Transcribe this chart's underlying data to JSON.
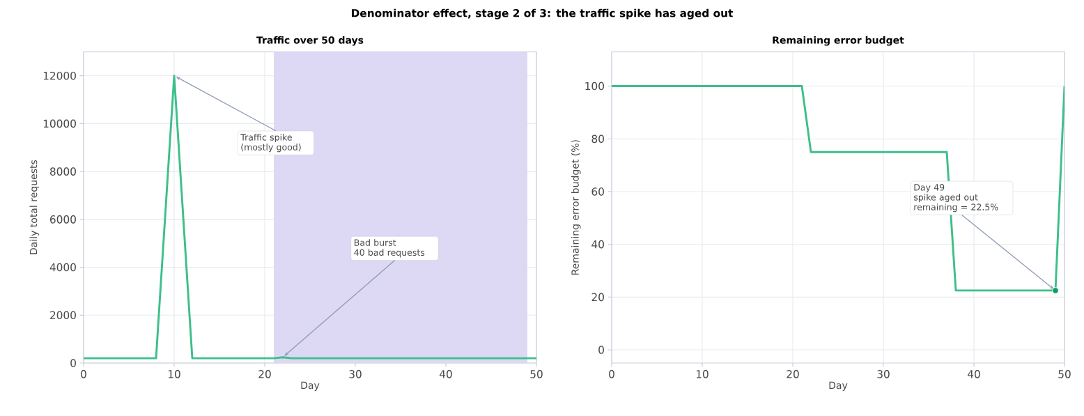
{
  "chart_data": [
    {
      "type": "line",
      "title": "Traffic over 50 days",
      "xlabel": "Day",
      "ylabel": "Daily total requests",
      "annotations": [
        "Denominator effect, stage 2 of 3: the traffic spike has aged out",
        {
          "text": "Traffic spike\n(mostly good)",
          "x": 10,
          "y": 12000
        },
        {
          "text": "Bad burst\n40 bad requests",
          "x": 22,
          "y": 240
        }
      ],
      "xlim": [
        0,
        50
      ],
      "ylim": [
        0,
        13000
      ],
      "xticks": [
        0,
        10,
        20,
        30,
        40,
        50
      ],
      "yticks": [
        0,
        2000,
        4000,
        6000,
        8000,
        10000,
        12000
      ],
      "grid": true,
      "bands": [
        {
          "axis": "x",
          "from": 21,
          "to": 49,
          "color": "#ddd8f3"
        }
      ],
      "series": [
        {
          "color": "#3dbf8a",
          "x": [
            0,
            8,
            10,
            12,
            21,
            22,
            23,
            50
          ],
          "values": [
            200,
            200,
            12000,
            200,
            200,
            240,
            200,
            200
          ]
        }
      ]
    },
    {
      "type": "line",
      "title": "Remaining error budget",
      "xlabel": "Day",
      "ylabel": "Remaining error budget (%)",
      "annotations": [
        {
          "text": "Day 49\nspike aged out\nremaining = 22.5%",
          "x": 49,
          "y": 22.5
        }
      ],
      "xlim": [
        0,
        50
      ],
      "ylim": [
        -5,
        113
      ],
      "xticks": [
        0,
        10,
        20,
        30,
        40,
        50
      ],
      "yticks": [
        0,
        20,
        40,
        60,
        80,
        100
      ],
      "grid": true,
      "series": [
        {
          "color": "#3dbf8a",
          "x": [
            0,
            21,
            22,
            37,
            38,
            49,
            50
          ],
          "values": [
            100,
            100,
            75,
            75,
            22.5,
            22.5,
            100
          ]
        },
        {
          "type": "scatter",
          "marker": "circle",
          "color": "#0e9f60",
          "x": [
            49
          ],
          "values": [
            22.5
          ]
        }
      ]
    }
  ]
}
